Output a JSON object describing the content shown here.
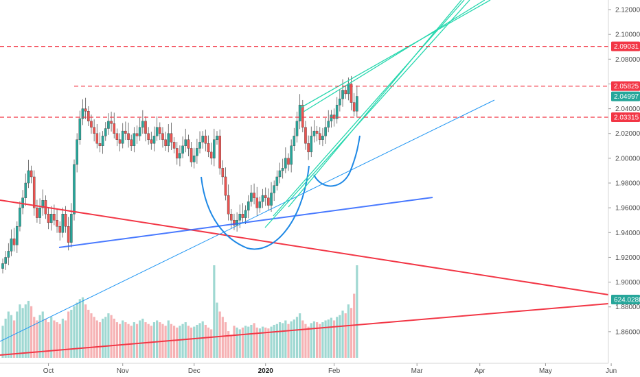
{
  "chart_data": {
    "type": "candlestick",
    "price_axis": {
      "ylim": [
        1.84,
        2.125
      ],
      "tick_labels": [
        "2.12000",
        "2.10000",
        "2.08000",
        "2.06000",
        "2.04000",
        "2.02000",
        "2.00000",
        "1.98000",
        "1.96000",
        "1.94000",
        "1.92000",
        "1.90000",
        "1.88000",
        "1.86000"
      ],
      "tick_values": [
        2.12,
        2.1,
        2.08,
        2.06,
        2.04,
        2.02,
        2.0,
        1.98,
        1.96,
        1.94,
        1.92,
        1.9,
        1.88,
        1.86
      ]
    },
    "time_axis": {
      "labels": [
        {
          "text": "Oct",
          "bold": false
        },
        {
          "text": "Nov",
          "bold": false
        },
        {
          "text": "Dec",
          "bold": false
        },
        {
          "text": "2020",
          "bold": true
        },
        {
          "text": "Feb",
          "bold": false
        },
        {
          "text": "Mar",
          "bold": false
        },
        {
          "text": "Apr",
          "bold": false
        },
        {
          "text": "May",
          "bold": false
        },
        {
          "text": "Jun",
          "bold": false
        }
      ],
      "bar_index_of_label": [
        16,
        42,
        67,
        92,
        116,
        145,
        167,
        190,
        213
      ]
    },
    "price_badges": [
      {
        "text": "2.09031",
        "value": 2.09031,
        "color": "#f23645"
      },
      {
        "text": "2.05825",
        "value": 2.05825,
        "color": "#f23645"
      },
      {
        "text": "2.04997",
        "value": 2.04997,
        "color": "#26a69a"
      },
      {
        "text": "2.03315",
        "value": 2.03315,
        "color": "#f23645"
      },
      {
        "text": "624.028K",
        "value": 624.028,
        "color": "#26a69a"
      }
    ],
    "horizontal_levels": [
      2.09031,
      2.05825,
      2.03315
    ],
    "closes": [
      1.915,
      1.92,
      1.925,
      1.935,
      1.93,
      1.945,
      1.96,
      1.968,
      1.98,
      1.99,
      1.985,
      1.96,
      1.952,
      1.96,
      1.966,
      1.955,
      1.948,
      1.955,
      1.95,
      1.945,
      1.94,
      1.955,
      1.945,
      1.932,
      1.955,
      1.995,
      2.015,
      2.032,
      2.04,
      2.038,
      2.03,
      2.025,
      2.02,
      2.012,
      2.01,
      2.018,
      2.024,
      2.03,
      2.028,
      2.02,
      2.015,
      2.012,
      2.022,
      2.02,
      2.015,
      2.01,
      2.02,
      2.018,
      2.025,
      2.03,
      2.02,
      2.015,
      2.012,
      2.018,
      2.025,
      2.02,
      2.015,
      2.01,
      2.02,
      2.013,
      2.008,
      2.0,
      2.004,
      2.01,
      2.015,
      2.008,
      1.997,
      2.002,
      2.008,
      2.013,
      2.018,
      2.012,
      2.005,
      2.0,
      2.015,
      2.018,
      1.992,
      1.985,
      1.97,
      1.955,
      1.95,
      1.946,
      1.95,
      1.955,
      1.952,
      1.958,
      1.965,
      1.972,
      1.968,
      1.96,
      1.965,
      1.97,
      1.968,
      1.962,
      1.972,
      1.978,
      1.985,
      1.99,
      1.992,
      2.0,
      1.995,
      2.01,
      2.018,
      2.03,
      2.043,
      2.025,
      2.012,
      2.005,
      2.018,
      2.022,
      2.02,
      2.015,
      2.018,
      2.025,
      2.03,
      2.035,
      2.032,
      2.043,
      2.048,
      2.055,
      2.052,
      2.06,
      2.045,
      2.038,
      2.05
    ],
    "volumes": [
      180,
      220,
      260,
      240,
      210,
      260,
      300,
      280,
      300,
      320,
      290,
      230,
      210,
      240,
      260,
      220,
      200,
      230,
      210,
      200,
      190,
      220,
      210,
      260,
      270,
      290,
      310,
      330,
      340,
      300,
      270,
      250,
      230,
      210,
      200,
      220,
      230,
      250,
      240,
      220,
      200,
      190,
      210,
      200,
      190,
      180,
      200,
      190,
      210,
      220,
      200,
      190,
      180,
      200,
      210,
      200,
      190,
      180,
      210,
      190,
      180,
      170,
      180,
      190,
      200,
      180,
      170,
      175,
      185,
      195,
      205,
      185,
      170,
      160,
      520,
      310,
      260,
      230,
      200,
      150,
      130,
      180,
      170,
      160,
      170,
      180,
      175,
      185,
      195,
      170,
      165,
      175,
      170,
      165,
      175,
      185,
      190,
      200,
      195,
      210,
      190,
      205,
      215,
      230,
      250,
      210,
      190,
      175,
      195,
      205,
      200,
      190,
      200,
      210,
      215,
      225,
      210,
      230,
      240,
      265,
      250,
      300,
      280,
      360,
      520
    ]
  }
}
